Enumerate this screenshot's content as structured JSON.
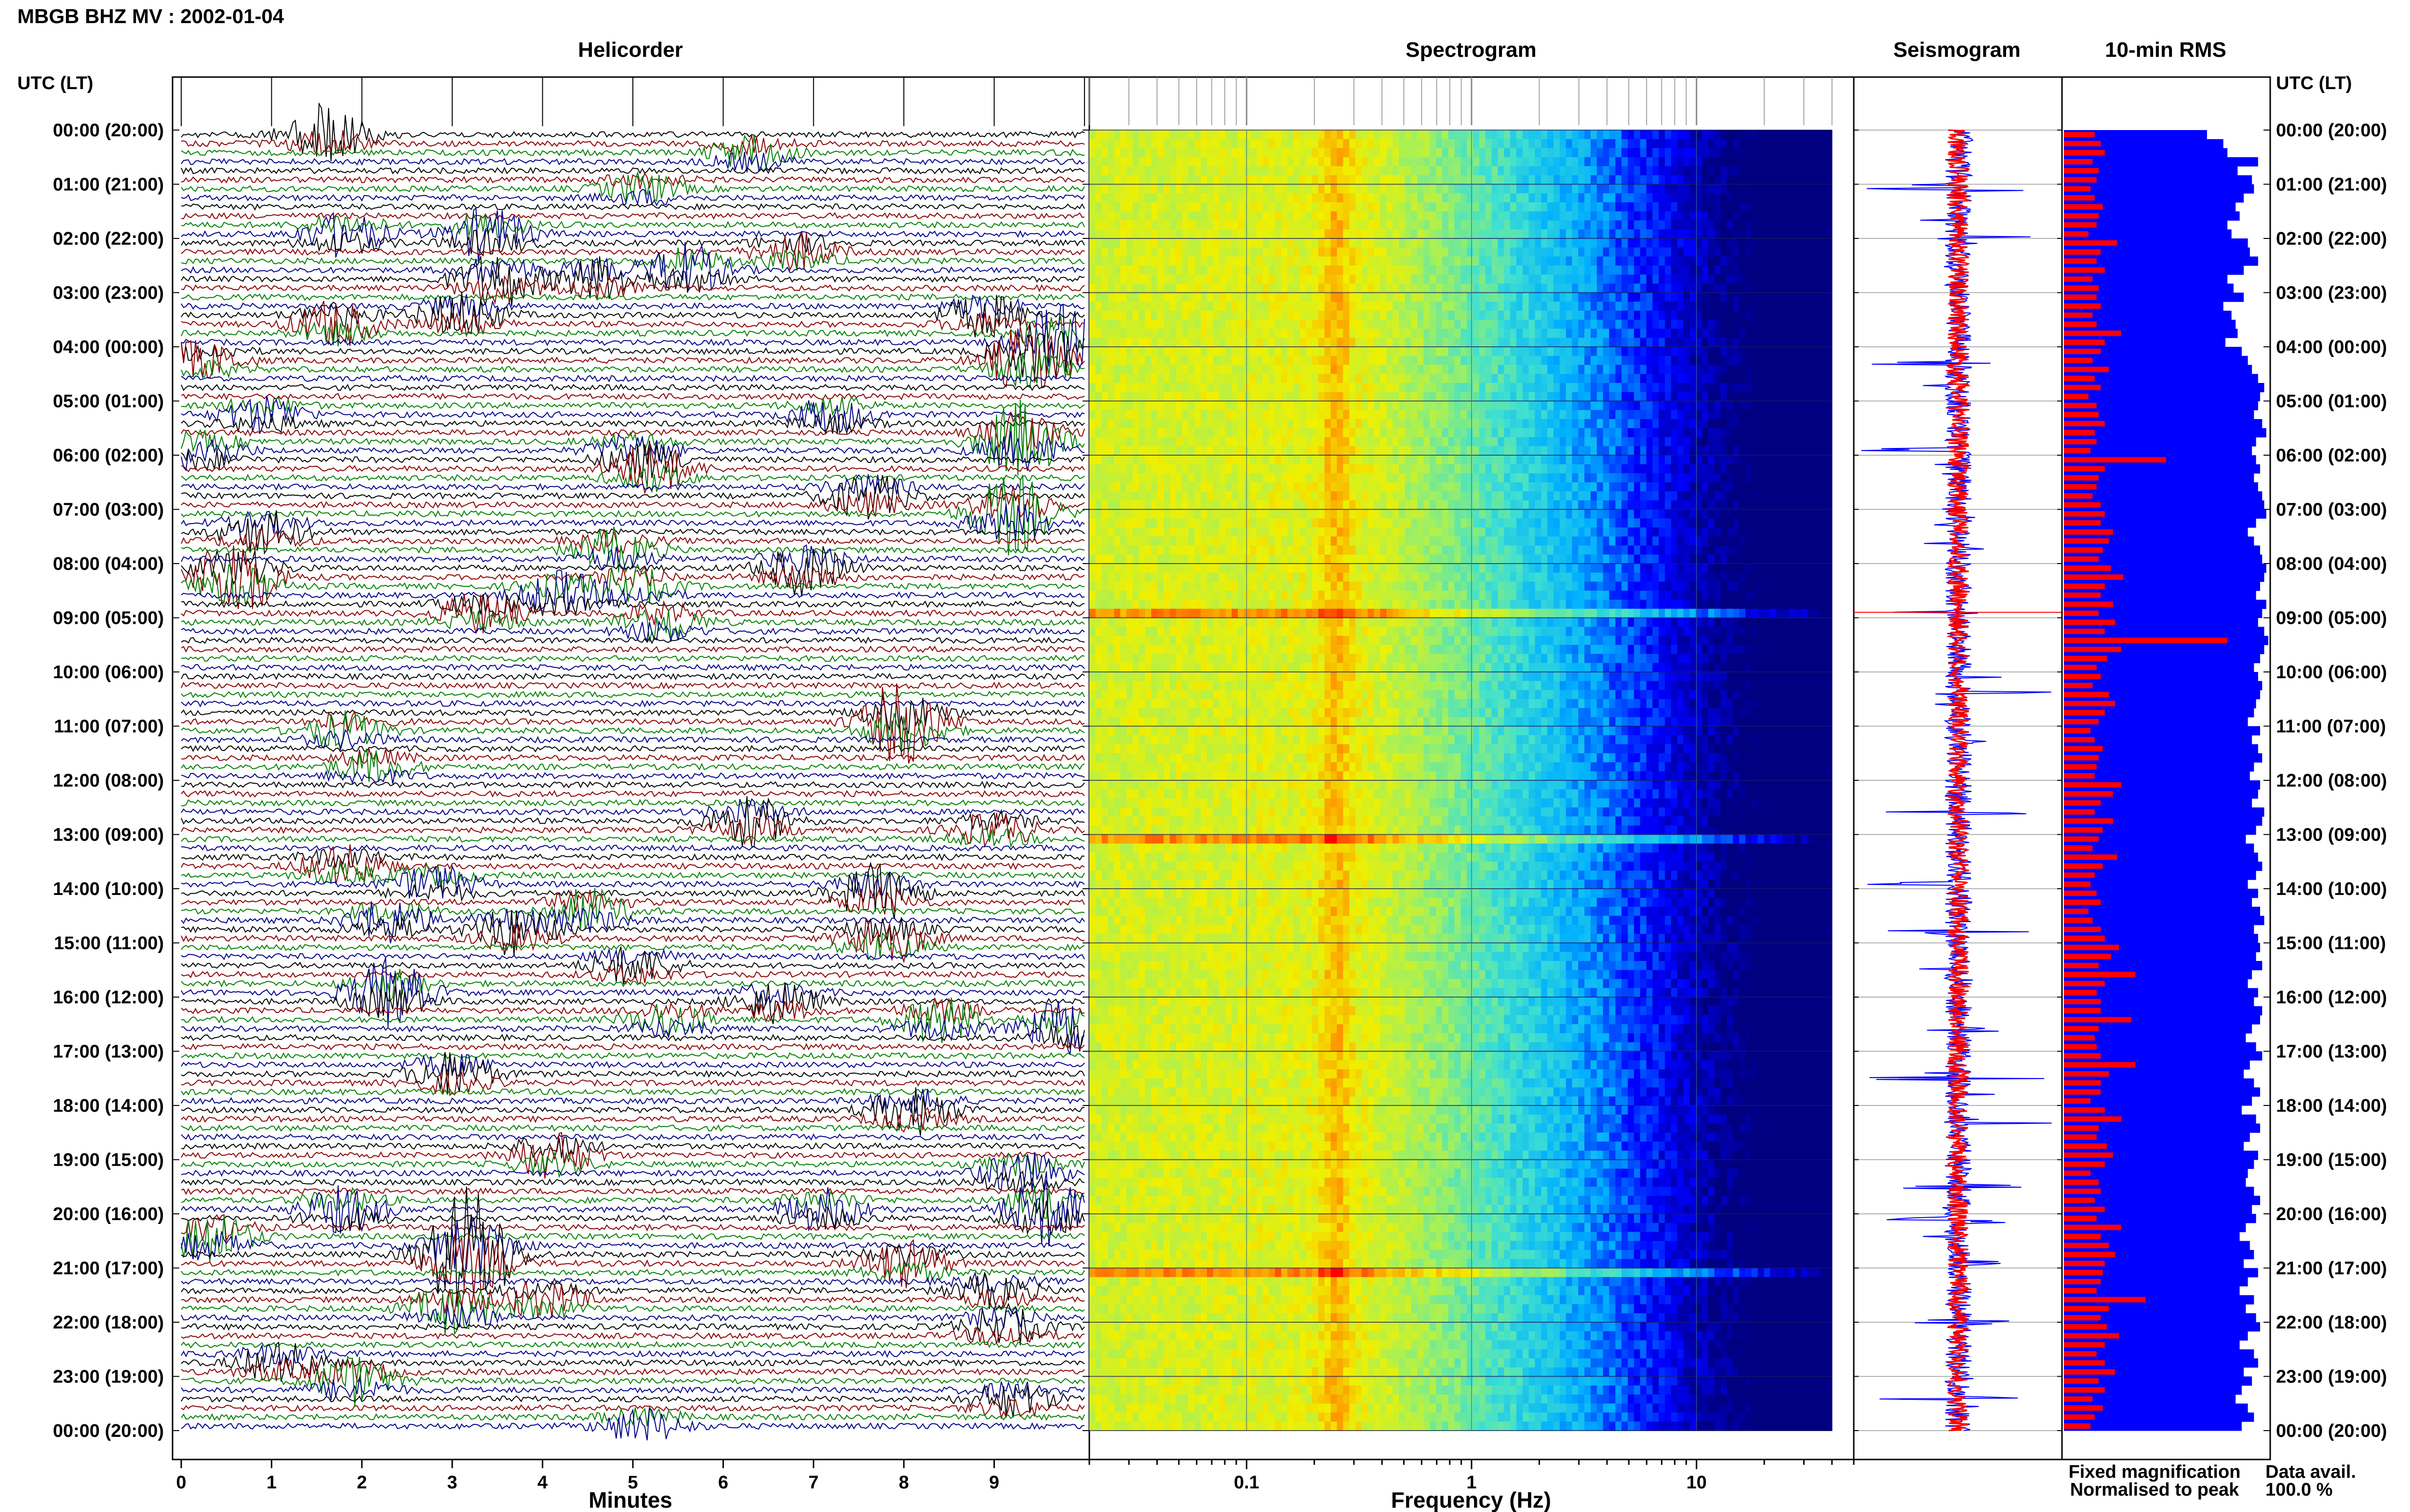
{
  "header": {
    "title": "MBGB BHZ MV : 2002-01-04",
    "left_axis_header": "UTC (LT)",
    "right_axis_header": "UTC (LT)"
  },
  "panels": {
    "helicorder": {
      "title": "Helicorder",
      "xlabel": "Minutes"
    },
    "spectrogram": {
      "title": "Spectrogram",
      "xlabel": "Frequency (Hz)"
    },
    "seismogram": {
      "title": "Seismogram"
    },
    "rms": {
      "title": "10-min RMS"
    }
  },
  "legend": {
    "fixed": "Fixed magnification",
    "normalised": "Normalised to peak",
    "fixed_color": "#0000ff",
    "normalised_color": "#ff0000"
  },
  "data_avail": {
    "label": "Data avail.",
    "value": "100.0 %"
  },
  "time_labels": [
    "00:00 (20:00)",
    "01:00 (21:00)",
    "02:00 (22:00)",
    "03:00 (23:00)",
    "04:00 (00:00)",
    "05:00 (01:00)",
    "06:00 (02:00)",
    "07:00 (03:00)",
    "08:00 (04:00)",
    "09:00 (05:00)",
    "10:00 (06:00)",
    "11:00 (07:00)",
    "12:00 (08:00)",
    "13:00 (09:00)",
    "14:00 (10:00)",
    "15:00 (11:00)",
    "16:00 (12:00)",
    "17:00 (13:00)",
    "18:00 (14:00)",
    "19:00 (15:00)",
    "20:00 (16:00)",
    "21:00 (17:00)",
    "22:00 (18:00)",
    "23:00 (19:00)",
    "00:00 (20:00)"
  ],
  "chart_data": [
    {
      "type": "line",
      "panel": "helicorder",
      "title": "Helicorder",
      "xlabel": "Minutes",
      "x_ticks": [
        0,
        1,
        2,
        3,
        4,
        5,
        6,
        7,
        8,
        9
      ],
      "xlim": [
        0,
        10
      ],
      "rows_per_hour": 6,
      "trace_colors": [
        "#000000",
        "#8b0000",
        "#008000",
        "#00008b"
      ],
      "events": [
        {
          "t": 0.05,
          "m": 1.6,
          "amp": 2.0
        },
        {
          "t": 0.4,
          "m": 6.3,
          "amp": 1.2
        },
        {
          "t": 1.1,
          "m": 5.1,
          "amp": 1.0
        },
        {
          "t": 1.95,
          "m": 1.8,
          "amp": 1.5
        },
        {
          "t": 1.95,
          "m": 3.4,
          "amp": 1.8
        },
        {
          "t": 2.2,
          "m": 6.8,
          "amp": 1.3
        },
        {
          "t": 2.55,
          "m": 5.6,
          "amp": 1.8
        },
        {
          "t": 2.75,
          "m": 4.6,
          "amp": 1.4
        },
        {
          "t": 2.8,
          "m": 3.5,
          "amp": 2.0
        },
        {
          "t": 3.35,
          "m": 3.1,
          "amp": 1.6
        },
        {
          "t": 3.45,
          "m": 8.9,
          "amp": 1.5
        },
        {
          "t": 3.6,
          "m": 1.7,
          "amp": 1.6
        },
        {
          "t": 3.95,
          "m": 9.7,
          "amp": 2.5
        },
        {
          "t": 4.3,
          "m": 9.4,
          "amp": 2.6
        },
        {
          "t": 4.3,
          "m": 0.2,
          "amp": 1.3
        },
        {
          "t": 5.2,
          "m": 0.9,
          "amp": 1.3
        },
        {
          "t": 5.3,
          "m": 7.2,
          "amp": 1.2
        },
        {
          "t": 5.75,
          "m": 9.3,
          "amp": 2.8
        },
        {
          "t": 5.95,
          "m": 0.2,
          "amp": 1.4
        },
        {
          "t": 5.9,
          "m": 5.0,
          "amp": 1.1
        },
        {
          "t": 6.2,
          "m": 5.2,
          "amp": 1.8
        },
        {
          "t": 6.75,
          "m": 7.6,
          "amp": 1.6
        },
        {
          "t": 7.1,
          "m": 9.2,
          "amp": 2.8
        },
        {
          "t": 7.35,
          "m": 0.9,
          "amp": 1.5
        },
        {
          "t": 7.75,
          "m": 4.8,
          "amp": 1.5
        },
        {
          "t": 8.05,
          "m": 6.9,
          "amp": 1.8
        },
        {
          "t": 8.25,
          "m": 0.6,
          "amp": 3.0
        },
        {
          "t": 8.35,
          "m": 5.0,
          "amp": 1.3
        },
        {
          "t": 8.65,
          "m": 4.2,
          "amp": 1.6
        },
        {
          "t": 8.95,
          "m": 3.3,
          "amp": 1.4
        },
        {
          "t": 9.1,
          "m": 5.3,
          "amp": 1.4
        },
        {
          "t": 10.85,
          "m": 8.0,
          "amp": 3.0
        },
        {
          "t": 11.05,
          "m": 1.8,
          "amp": 1.2
        },
        {
          "t": 11.75,
          "m": 2.1,
          "amp": 1.1
        },
        {
          "t": 12.8,
          "m": 6.3,
          "amp": 1.7
        },
        {
          "t": 12.95,
          "m": 9.0,
          "amp": 1.2
        },
        {
          "t": 13.55,
          "m": 1.8,
          "amp": 1.4
        },
        {
          "t": 13.9,
          "m": 2.8,
          "amp": 1.3
        },
        {
          "t": 14.1,
          "m": 7.7,
          "amp": 2.0
        },
        {
          "t": 14.4,
          "m": 4.5,
          "amp": 1.5
        },
        {
          "t": 14.65,
          "m": 2.3,
          "amp": 1.5
        },
        {
          "t": 14.8,
          "m": 3.7,
          "amp": 1.8
        },
        {
          "t": 14.9,
          "m": 7.8,
          "amp": 1.8
        },
        {
          "t": 15.45,
          "m": 5.0,
          "amp": 1.3
        },
        {
          "t": 15.95,
          "m": 2.3,
          "amp": 2.3
        },
        {
          "t": 16.1,
          "m": 6.6,
          "amp": 1.4
        },
        {
          "t": 16.35,
          "m": 5.4,
          "amp": 1.2
        },
        {
          "t": 16.45,
          "m": 8.4,
          "amp": 1.6
        },
        {
          "t": 16.65,
          "m": 9.8,
          "amp": 2.0
        },
        {
          "t": 17.45,
          "m": 3.0,
          "amp": 1.5
        },
        {
          "t": 18.05,
          "m": 8.1,
          "amp": 1.7
        },
        {
          "t": 18.95,
          "m": 4.1,
          "amp": 1.6
        },
        {
          "t": 19.3,
          "m": 9.3,
          "amp": 1.5
        },
        {
          "t": 19.85,
          "m": 1.8,
          "amp": 1.6
        },
        {
          "t": 19.85,
          "m": 7.1,
          "amp": 1.4
        },
        {
          "t": 19.95,
          "m": 9.6,
          "amp": 2.6
        },
        {
          "t": 20.35,
          "m": 0.3,
          "amp": 2.0
        },
        {
          "t": 20.75,
          "m": 3.3,
          "amp": 2.2
        },
        {
          "t": 20.8,
          "m": 3.1,
          "amp": 2.8
        },
        {
          "t": 20.95,
          "m": 8.0,
          "amp": 1.6
        },
        {
          "t": 21.35,
          "m": 9.0,
          "amp": 1.2
        },
        {
          "t": 21.5,
          "m": 4.0,
          "amp": 1.3
        },
        {
          "t": 21.75,
          "m": 3.0,
          "amp": 1.8
        },
        {
          "t": 22.15,
          "m": 9.1,
          "amp": 1.4
        },
        {
          "t": 22.75,
          "m": 1.1,
          "amp": 1.4
        },
        {
          "t": 23.1,
          "m": 1.9,
          "amp": 1.7
        },
        {
          "t": 23.45,
          "m": 9.2,
          "amp": 1.2
        },
        {
          "t": 23.85,
          "m": 5.1,
          "amp": 1.2
        }
      ]
    },
    {
      "type": "heatmap",
      "panel": "spectrogram",
      "title": "Spectrogram",
      "xlabel": "Frequency (Hz)",
      "x_scale": "log",
      "xlim": [
        0.02,
        50
      ],
      "x_tick_labels": [
        "0.1",
        "1",
        "10"
      ],
      "x_ticks": [
        0.1,
        1,
        10
      ],
      "colormap": [
        "#000080",
        "#0000ff",
        "#00b0ff",
        "#40e0d0",
        "#a0f060",
        "#f0f000",
        "#ff9000",
        "#ff0000"
      ],
      "peak_band_hz": [
        0.2,
        0.3
      ],
      "data_cutoff_hz": 40,
      "high_energy_rows_utc": [
        8.9,
        12.95,
        20.95
      ]
    },
    {
      "type": "line",
      "panel": "seismogram",
      "title": "Seismogram",
      "series": [
        {
          "name": "Fixed magnification",
          "color": "#0000ff"
        },
        {
          "name": "Normalised to peak",
          "color": "#ff0000"
        }
      ],
      "spikes_utc": [
        1.1,
        2.0,
        4.3,
        5.9,
        8.9,
        10.4,
        11.3,
        12.6,
        13.9,
        14.8,
        16.6,
        17.5,
        18.3,
        19.5,
        20.1,
        20.9,
        22.0,
        23.4
      ]
    },
    {
      "type": "bar",
      "panel": "rms",
      "title": "10-min RMS",
      "orientation": "horizontal",
      "bins_per_hour": 6,
      "series": [
        {
          "name": "Fixed magnification",
          "color": "#0000ff"
        },
        {
          "name": "Normalised to peak",
          "color": "#ff0000"
        }
      ],
      "fixed_magnification": [
        0.7,
        0.78,
        0.8,
        0.95,
        0.85,
        0.92,
        0.93,
        0.88,
        0.84,
        0.86,
        0.8,
        0.82,
        0.9,
        0.91,
        0.95,
        0.88,
        0.8,
        0.83,
        0.88,
        0.78,
        0.82,
        0.84,
        0.85,
        0.79,
        0.87,
        0.9,
        0.92,
        0.95,
        0.98,
        0.96,
        0.95,
        0.93,
        0.97,
        0.99,
        0.94,
        0.92,
        0.94,
        0.96,
        0.93,
        0.95,
        0.97,
        0.98,
        0.99,
        0.94,
        0.9,
        0.93,
        0.96,
        0.97,
        0.99,
        0.98,
        0.96,
        0.94,
        0.99,
        0.97,
        0.95,
        0.98,
        1.0,
        0.98,
        0.96,
        0.93,
        0.95,
        0.97,
        0.96,
        0.94,
        0.93,
        0.9,
        0.96,
        0.92,
        0.95,
        0.97,
        0.93,
        0.91,
        0.96,
        0.95,
        0.92,
        0.98,
        0.97,
        0.94,
        0.89,
        0.93,
        0.95,
        0.97,
        0.94,
        0.9,
        0.95,
        0.92,
        0.96,
        0.98,
        0.93,
        0.95,
        0.96,
        0.94,
        0.97,
        0.92,
        0.9,
        0.95,
        0.93,
        0.97,
        0.96,
        0.92,
        0.89,
        0.94,
        0.97,
        0.91,
        0.88,
        0.93,
        0.96,
        0.92,
        0.87,
        0.94,
        0.96,
        0.91,
        0.88,
        0.95,
        0.93,
        0.9,
        0.89,
        0.93,
        0.96,
        0.92,
        0.94,
        0.89,
        0.86,
        0.91,
        0.93,
        0.88,
        0.95,
        0.9,
        0.86,
        0.93,
        0.89,
        0.94,
        0.96,
        0.9,
        0.86,
        0.93,
        0.95,
        0.88,
        0.92,
        0.87,
        0.84,
        0.9,
        0.93,
        0.87
      ],
      "normalised_to_peak": [
        0.15,
        0.18,
        0.2,
        0.14,
        0.17,
        0.16,
        0.13,
        0.15,
        0.19,
        0.17,
        0.16,
        0.12,
        0.26,
        0.18,
        0.16,
        0.2,
        0.14,
        0.17,
        0.16,
        0.18,
        0.14,
        0.16,
        0.28,
        0.2,
        0.18,
        0.14,
        0.22,
        0.15,
        0.18,
        0.12,
        0.16,
        0.17,
        0.2,
        0.15,
        0.16,
        0.13,
        0.5,
        0.2,
        0.17,
        0.16,
        0.14,
        0.18,
        0.2,
        0.18,
        0.24,
        0.22,
        0.19,
        0.17,
        0.23,
        0.29,
        0.2,
        0.18,
        0.24,
        0.17,
        0.25,
        0.2,
        0.8,
        0.28,
        0.21,
        0.16,
        0.18,
        0.14,
        0.22,
        0.25,
        0.2,
        0.17,
        0.13,
        0.15,
        0.19,
        0.17,
        0.16,
        0.15,
        0.28,
        0.24,
        0.18,
        0.15,
        0.24,
        0.19,
        0.17,
        0.14,
        0.26,
        0.19,
        0.15,
        0.13,
        0.16,
        0.18,
        0.12,
        0.14,
        0.18,
        0.2,
        0.27,
        0.23,
        0.17,
        0.35,
        0.2,
        0.16,
        0.18,
        0.18,
        0.33,
        0.17,
        0.15,
        0.16,
        0.18,
        0.35,
        0.22,
        0.18,
        0.18,
        0.13,
        0.2,
        0.28,
        0.17,
        0.16,
        0.21,
        0.24,
        0.2,
        0.13,
        0.17,
        0.18,
        0.15,
        0.2,
        0.16,
        0.28,
        0.18,
        0.22,
        0.25,
        0.2,
        0.19,
        0.18,
        0.16,
        0.4,
        0.22,
        0.18,
        0.21,
        0.27,
        0.2,
        0.16,
        0.2,
        0.25,
        0.17,
        0.2,
        0.14,
        0.19,
        0.15,
        0.13
      ]
    }
  ]
}
